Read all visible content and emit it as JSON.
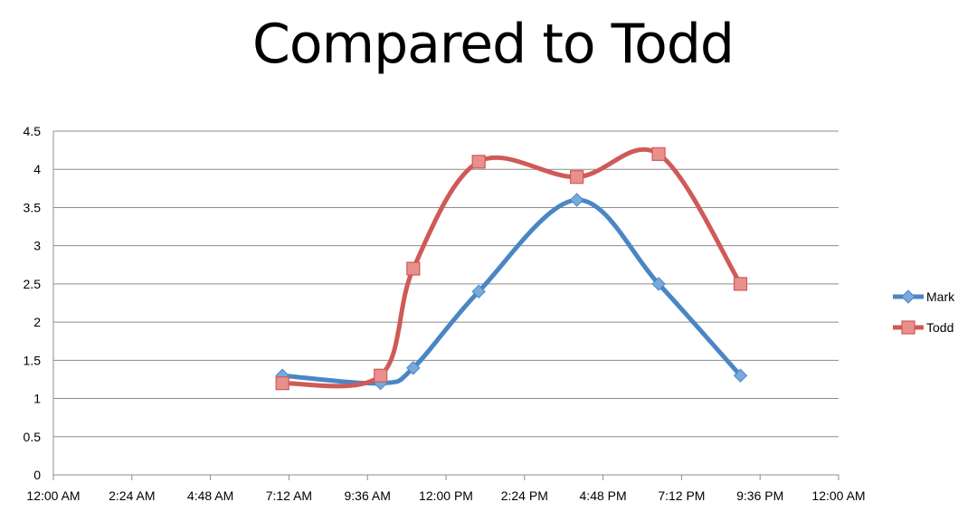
{
  "chart_data": {
    "type": "line",
    "title": "Compared to Todd",
    "xlabel": "",
    "ylabel": "",
    "x_ticks": [
      "12:00 AM",
      "2:24 AM",
      "4:48 AM",
      "7:12 AM",
      "9:36 AM",
      "12:00 PM",
      "2:24 PM",
      "4:48 PM",
      "7:12 PM",
      "9:36 PM",
      "12:00 AM"
    ],
    "y_ticks": [
      "0",
      "0.5",
      "1",
      "1.5",
      "2",
      "2.5",
      "3",
      "3.5",
      "4",
      "4.5"
    ],
    "xlim": [
      "12:00 AM",
      "12:00 AM (next day)"
    ],
    "ylim": [
      0,
      4.5
    ],
    "grid": "horizontal",
    "legend": "right",
    "smoothed": true,
    "series": [
      {
        "name": "Mark",
        "color": "#4a86c5",
        "marker": "diamond",
        "x": [
          "7:00 AM",
          "10:00 AM",
          "11:00 AM",
          "1:00 PM",
          "4:00 PM",
          "6:30 PM",
          "9:00 PM"
        ],
        "y": [
          1.3,
          1.2,
          1.4,
          2.4,
          3.6,
          2.5,
          1.3
        ]
      },
      {
        "name": "Todd",
        "color": "#cf5a57",
        "marker": "square",
        "x": [
          "7:00 AM",
          "10:00 AM",
          "11:00 AM",
          "1:00 PM",
          "4:00 PM",
          "6:30 PM",
          "9:00 PM"
        ],
        "y": [
          1.2,
          1.3,
          2.7,
          4.1,
          3.9,
          4.2,
          2.5
        ]
      }
    ]
  }
}
